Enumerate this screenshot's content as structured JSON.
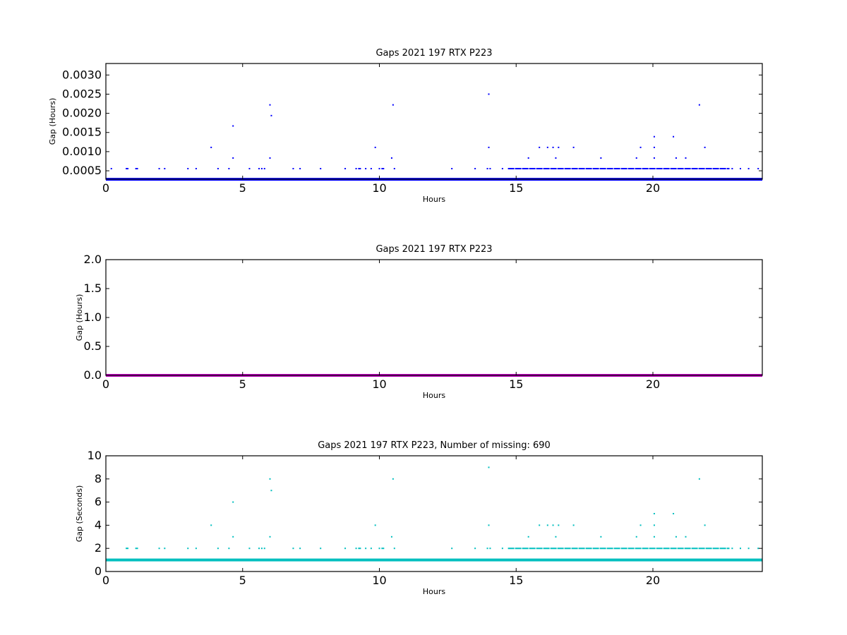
{
  "chart_data": [
    {
      "type": "scatter",
      "title": "Gaps 2021 197 RTX  P223",
      "xlabel": "Hours",
      "ylabel": "Gap (Hours)",
      "xlim": [
        0,
        24
      ],
      "ylim": [
        0.00028,
        0.0033
      ],
      "xticks": [
        0,
        5,
        10,
        15,
        20
      ],
      "yticks": [
        0.0005,
        0.001,
        0.0015,
        0.002,
        0.0025,
        0.003
      ],
      "yticklabels": [
        "0.0005",
        "0.0010",
        "0.0015",
        "0.0020",
        "0.0025",
        "0.0030"
      ],
      "color": "#0000ff",
      "baseline": {
        "y": 0.000278,
        "color": "#0000ff"
      },
      "dense_band": {
        "x_start": 14.7,
        "x_end": 22.8,
        "y": 0.000556
      },
      "points": [
        [
          0.2,
          0.000556
        ],
        [
          0.75,
          0.000556
        ],
        [
          0.8,
          0.000556
        ],
        [
          1.1,
          0.000556
        ],
        [
          1.15,
          0.000556
        ],
        [
          1.95,
          0.000556
        ],
        [
          2.15,
          0.000556
        ],
        [
          3.0,
          0.000556
        ],
        [
          3.3,
          0.000556
        ],
        [
          3.85,
          0.00111
        ],
        [
          4.1,
          0.000556
        ],
        [
          4.5,
          0.000556
        ],
        [
          4.65,
          0.00167
        ],
        [
          4.65,
          0.000833
        ],
        [
          5.25,
          0.000556
        ],
        [
          5.6,
          0.000556
        ],
        [
          5.7,
          0.000556
        ],
        [
          5.8,
          0.000556
        ],
        [
          6.0,
          0.00222
        ],
        [
          6.05,
          0.00194
        ],
        [
          6.0,
          0.000833
        ],
        [
          6.85,
          0.000556
        ],
        [
          7.1,
          0.000556
        ],
        [
          7.85,
          0.000556
        ],
        [
          8.75,
          0.000556
        ],
        [
          9.15,
          0.000556
        ],
        [
          9.25,
          0.000556
        ],
        [
          9.3,
          0.000556
        ],
        [
          9.5,
          0.000556
        ],
        [
          9.7,
          0.000556
        ],
        [
          9.85,
          0.00111
        ],
        [
          10.0,
          0.000556
        ],
        [
          10.1,
          0.000556
        ],
        [
          10.15,
          0.000556
        ],
        [
          10.45,
          0.000833
        ],
        [
          10.5,
          0.00222
        ],
        [
          10.55,
          0.000556
        ],
        [
          12.65,
          0.000556
        ],
        [
          13.5,
          0.000556
        ],
        [
          13.95,
          0.000556
        ],
        [
          14.05,
          0.000556
        ],
        [
          14.0,
          0.0025
        ],
        [
          14.0,
          0.00111
        ],
        [
          14.5,
          0.000556
        ],
        [
          15.45,
          0.000833
        ],
        [
          15.85,
          0.00111
        ],
        [
          16.15,
          0.00111
        ],
        [
          16.35,
          0.00111
        ],
        [
          16.45,
          0.000833
        ],
        [
          16.55,
          0.00111
        ],
        [
          17.1,
          0.00111
        ],
        [
          18.1,
          0.000833
        ],
        [
          19.4,
          0.000833
        ],
        [
          19.55,
          0.00111
        ],
        [
          20.05,
          0.00111
        ],
        [
          20.05,
          0.000833
        ],
        [
          20.05,
          0.00139
        ],
        [
          20.75,
          0.00139
        ],
        [
          20.85,
          0.000833
        ],
        [
          21.2,
          0.000833
        ],
        [
          21.7,
          0.00222
        ],
        [
          21.9,
          0.00111
        ],
        [
          22.9,
          0.000556
        ],
        [
          23.2,
          0.000556
        ],
        [
          23.5,
          0.000556
        ],
        [
          23.85,
          0.000556
        ]
      ]
    },
    {
      "type": "scatter",
      "title": "Gaps 2021 197 RTX  P223",
      "xlabel": "Hours",
      "ylabel": "Gap (Hours)",
      "xlim": [
        0,
        24
      ],
      "ylim": [
        0,
        2.0
      ],
      "xticks": [
        0,
        5,
        10,
        15,
        20
      ],
      "yticks": [
        0.0,
        0.5,
        1.0,
        1.5,
        2.0
      ],
      "yticklabels": [
        "0.0",
        "0.5",
        "1.0",
        "1.5",
        "2.0"
      ],
      "color": "#bf00bf",
      "baseline": {
        "y": 0.0,
        "color": "#bf00bf"
      },
      "points": []
    },
    {
      "type": "scatter",
      "title": "Gaps 2021 197 RTX  P223, Number of missing: 690",
      "xlabel": "Hours",
      "ylabel": "Gap (Seconds)",
      "xlim": [
        0,
        24
      ],
      "ylim": [
        0,
        10
      ],
      "xticks": [
        0,
        5,
        10,
        15,
        20
      ],
      "yticks": [
        0,
        2,
        4,
        6,
        8,
        10
      ],
      "yticklabels": [
        "0",
        "2",
        "4",
        "6",
        "8",
        "10"
      ],
      "color": "#00bfbf",
      "baseline": {
        "y": 1,
        "color": "#00bfbf"
      },
      "dense_band": {
        "x_start": 14.7,
        "x_end": 22.8,
        "y": 2
      },
      "points": [
        [
          0.75,
          2
        ],
        [
          0.8,
          2
        ],
        [
          1.1,
          2
        ],
        [
          1.15,
          2
        ],
        [
          1.95,
          2
        ],
        [
          2.15,
          2
        ],
        [
          3.0,
          2
        ],
        [
          3.3,
          2
        ],
        [
          3.85,
          4
        ],
        [
          4.1,
          2
        ],
        [
          4.5,
          2
        ],
        [
          4.65,
          6
        ],
        [
          4.65,
          3
        ],
        [
          5.25,
          2
        ],
        [
          5.6,
          2
        ],
        [
          5.7,
          2
        ],
        [
          5.8,
          2
        ],
        [
          6.0,
          8
        ],
        [
          6.05,
          7
        ],
        [
          6.0,
          3
        ],
        [
          6.85,
          2
        ],
        [
          7.1,
          2
        ],
        [
          7.85,
          2
        ],
        [
          8.75,
          2
        ],
        [
          9.15,
          2
        ],
        [
          9.25,
          2
        ],
        [
          9.3,
          2
        ],
        [
          9.5,
          2
        ],
        [
          9.7,
          2
        ],
        [
          9.85,
          4
        ],
        [
          10.0,
          2
        ],
        [
          10.1,
          2
        ],
        [
          10.15,
          2
        ],
        [
          10.45,
          3
        ],
        [
          10.5,
          8
        ],
        [
          10.55,
          2
        ],
        [
          12.65,
          2
        ],
        [
          13.5,
          2
        ],
        [
          13.95,
          2
        ],
        [
          14.05,
          2
        ],
        [
          14.0,
          9
        ],
        [
          14.0,
          4
        ],
        [
          14.5,
          2
        ],
        [
          15.45,
          3
        ],
        [
          15.85,
          4
        ],
        [
          16.15,
          4
        ],
        [
          16.35,
          4
        ],
        [
          16.45,
          3
        ],
        [
          16.55,
          4
        ],
        [
          17.1,
          4
        ],
        [
          18.1,
          3
        ],
        [
          19.4,
          3
        ],
        [
          19.55,
          4
        ],
        [
          20.05,
          4
        ],
        [
          20.05,
          3
        ],
        [
          20.05,
          5
        ],
        [
          20.75,
          5
        ],
        [
          20.85,
          3
        ],
        [
          21.2,
          3
        ],
        [
          21.7,
          8
        ],
        [
          21.9,
          4
        ],
        [
          22.9,
          2
        ],
        [
          23.2,
          2
        ],
        [
          23.5,
          2
        ],
        [
          23.85,
          2
        ]
      ]
    }
  ]
}
